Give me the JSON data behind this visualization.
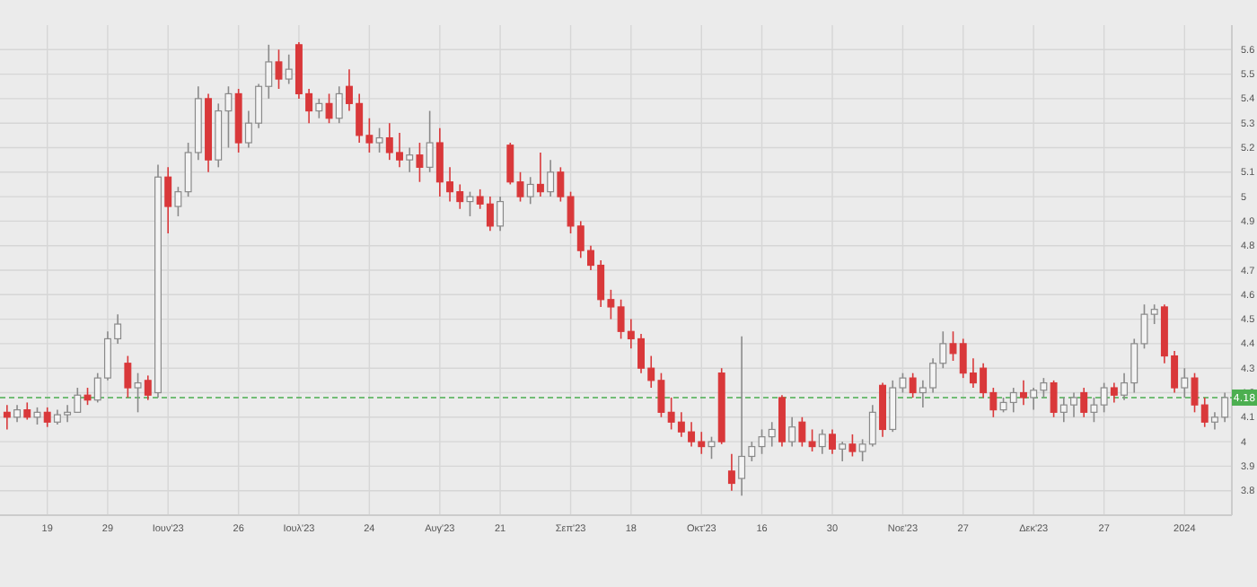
{
  "chart_data": {
    "type": "candlestick",
    "categories": [
      null,
      null,
      null,
      null,
      "19",
      null,
      null,
      null,
      null,
      null,
      "29",
      null,
      null,
      null,
      null,
      null,
      "Ιουν'23",
      null,
      null,
      null,
      null,
      null,
      null,
      "26",
      null,
      null,
      null,
      null,
      null,
      "Ιουλ'23",
      null,
      null,
      null,
      null,
      null,
      null,
      "24",
      null,
      null,
      null,
      null,
      null,
      null,
      "Αυγ'23",
      null,
      null,
      null,
      null,
      null,
      "21",
      null,
      null,
      null,
      null,
      null,
      null,
      "Σεπ'23",
      null,
      null,
      null,
      null,
      null,
      "18",
      null,
      null,
      null,
      null,
      null,
      null,
      "Οκτ'23",
      null,
      null,
      null,
      null,
      null,
      "16",
      null,
      null,
      null,
      null,
      null,
      null,
      "30",
      null,
      null,
      null,
      null,
      null,
      null,
      "Νοε'23",
      null,
      null,
      null,
      null,
      null,
      "27",
      null,
      null,
      null,
      null,
      null,
      null,
      "Δεκ'23",
      null,
      null,
      null,
      null,
      null,
      null,
      "27",
      null,
      null,
      null,
      null,
      null,
      null,
      null,
      "2024",
      null,
      null,
      null,
      null
    ],
    "ohlc": [
      [
        4.12,
        4.15,
        4.05,
        4.1
      ],
      [
        4.1,
        4.15,
        4.08,
        4.13
      ],
      [
        4.13,
        4.16,
        4.09,
        4.1
      ],
      [
        4.1,
        4.14,
        4.07,
        4.12
      ],
      [
        4.12,
        4.14,
        4.06,
        4.08
      ],
      [
        4.08,
        4.13,
        4.07,
        4.11
      ],
      [
        4.11,
        4.15,
        4.08,
        4.12
      ],
      [
        4.12,
        4.22,
        4.12,
        4.19
      ],
      [
        4.19,
        4.22,
        4.15,
        4.17
      ],
      [
        4.17,
        4.28,
        4.16,
        4.26
      ],
      [
        4.26,
        4.45,
        4.25,
        4.42
      ],
      [
        4.42,
        4.52,
        4.4,
        4.48
      ],
      [
        4.32,
        4.35,
        4.18,
        4.22
      ],
      [
        4.22,
        4.28,
        4.12,
        4.24
      ],
      [
        4.25,
        4.27,
        4.17,
        4.19
      ],
      [
        4.2,
        5.13,
        4.18,
        5.08
      ],
      [
        5.08,
        5.12,
        4.85,
        4.96
      ],
      [
        4.96,
        5.04,
        4.92,
        5.02
      ],
      [
        5.02,
        5.22,
        5.0,
        5.18
      ],
      [
        5.18,
        5.45,
        5.15,
        5.4
      ],
      [
        5.4,
        5.42,
        5.1,
        5.15
      ],
      [
        5.15,
        5.38,
        5.12,
        5.35
      ],
      [
        5.35,
        5.45,
        5.2,
        5.42
      ],
      [
        5.42,
        5.44,
        5.18,
        5.22
      ],
      [
        5.22,
        5.35,
        5.2,
        5.3
      ],
      [
        5.3,
        5.46,
        5.28,
        5.45
      ],
      [
        5.45,
        5.62,
        5.4,
        5.55
      ],
      [
        5.55,
        5.6,
        5.44,
        5.48
      ],
      [
        5.48,
        5.58,
        5.46,
        5.52
      ],
      [
        5.62,
        5.63,
        5.4,
        5.42
      ],
      [
        5.42,
        5.44,
        5.3,
        5.35
      ],
      [
        5.35,
        5.4,
        5.32,
        5.38
      ],
      [
        5.38,
        5.42,
        5.3,
        5.32
      ],
      [
        5.32,
        5.45,
        5.3,
        5.42
      ],
      [
        5.45,
        5.52,
        5.35,
        5.38
      ],
      [
        5.38,
        5.42,
        5.22,
        5.25
      ],
      [
        5.25,
        5.32,
        5.18,
        5.22
      ],
      [
        5.22,
        5.28,
        5.18,
        5.24
      ],
      [
        5.24,
        5.3,
        5.15,
        5.18
      ],
      [
        5.18,
        5.26,
        5.12,
        5.15
      ],
      [
        5.15,
        5.2,
        5.1,
        5.17
      ],
      [
        5.17,
        5.22,
        5.06,
        5.12
      ],
      [
        5.12,
        5.35,
        5.1,
        5.22
      ],
      [
        5.22,
        5.28,
        5.0,
        5.06
      ],
      [
        5.06,
        5.12,
        4.98,
        5.02
      ],
      [
        5.02,
        5.05,
        4.95,
        4.98
      ],
      [
        4.98,
        5.02,
        4.92,
        5.0
      ],
      [
        5.0,
        5.03,
        4.95,
        4.97
      ],
      [
        4.97,
        5.0,
        4.86,
        4.88
      ],
      [
        4.88,
        5.0,
        4.86,
        4.98
      ],
      [
        5.21,
        5.22,
        5.05,
        5.06
      ],
      [
        5.06,
        5.1,
        4.98,
        5.0
      ],
      [
        5.0,
        5.08,
        4.97,
        5.05
      ],
      [
        5.05,
        5.18,
        5.0,
        5.02
      ],
      [
        5.02,
        5.15,
        5.0,
        5.1
      ],
      [
        5.1,
        5.12,
        4.98,
        5.0
      ],
      [
        5.0,
        5.02,
        4.85,
        4.88
      ],
      [
        4.88,
        4.9,
        4.75,
        4.78
      ],
      [
        4.78,
        4.8,
        4.7,
        4.72
      ],
      [
        4.72,
        4.74,
        4.55,
        4.58
      ],
      [
        4.58,
        4.62,
        4.5,
        4.55
      ],
      [
        4.55,
        4.58,
        4.42,
        4.45
      ],
      [
        4.45,
        4.5,
        4.38,
        4.42
      ],
      [
        4.42,
        4.44,
        4.28,
        4.3
      ],
      [
        4.3,
        4.35,
        4.22,
        4.25
      ],
      [
        4.25,
        4.28,
        4.1,
        4.12
      ],
      [
        4.12,
        4.18,
        4.05,
        4.08
      ],
      [
        4.08,
        4.12,
        4.02,
        4.04
      ],
      [
        4.04,
        4.08,
        3.98,
        4.0
      ],
      [
        4.0,
        4.04,
        3.95,
        3.98
      ],
      [
        3.98,
        4.02,
        3.93,
        4.0
      ],
      [
        4.28,
        4.3,
        3.99,
        4.0
      ],
      [
        3.88,
        3.95,
        3.8,
        3.83
      ],
      [
        3.85,
        4.43,
        3.78,
        3.94
      ],
      [
        3.94,
        4.0,
        3.92,
        3.98
      ],
      [
        3.98,
        4.05,
        3.95,
        4.02
      ],
      [
        4.02,
        4.08,
        3.98,
        4.05
      ],
      [
        4.18,
        4.19,
        3.98,
        4.0
      ],
      [
        4.0,
        4.1,
        3.98,
        4.06
      ],
      [
        4.08,
        4.1,
        3.98,
        4.0
      ],
      [
        4.0,
        4.05,
        3.96,
        3.98
      ],
      [
        3.98,
        4.05,
        3.95,
        4.03
      ],
      [
        4.03,
        4.05,
        3.95,
        3.97
      ],
      [
        3.97,
        4.0,
        3.92,
        3.99
      ],
      [
        3.99,
        4.03,
        3.94,
        3.96
      ],
      [
        3.96,
        4.01,
        3.92,
        3.99
      ],
      [
        3.99,
        4.15,
        3.98,
        4.12
      ],
      [
        4.23,
        4.24,
        4.02,
        4.05
      ],
      [
        4.05,
        4.25,
        4.04,
        4.22
      ],
      [
        4.22,
        4.28,
        4.2,
        4.26
      ],
      [
        4.26,
        4.28,
        4.18,
        4.2
      ],
      [
        4.2,
        4.25,
        4.14,
        4.22
      ],
      [
        4.22,
        4.34,
        4.2,
        4.32
      ],
      [
        4.32,
        4.45,
        4.3,
        4.4
      ],
      [
        4.4,
        4.45,
        4.33,
        4.36
      ],
      [
        4.4,
        4.42,
        4.26,
        4.28
      ],
      [
        4.28,
        4.34,
        4.22,
        4.24
      ],
      [
        4.3,
        4.32,
        4.18,
        4.2
      ],
      [
        4.2,
        4.22,
        4.1,
        4.13
      ],
      [
        4.13,
        4.18,
        4.12,
        4.16
      ],
      [
        4.16,
        4.22,
        4.12,
        4.2
      ],
      [
        4.2,
        4.25,
        4.15,
        4.18
      ],
      [
        4.18,
        4.22,
        4.13,
        4.21
      ],
      [
        4.21,
        4.26,
        4.18,
        4.24
      ],
      [
        4.24,
        4.25,
        4.1,
        4.12
      ],
      [
        4.12,
        4.18,
        4.08,
        4.15
      ],
      [
        4.15,
        4.2,
        4.1,
        4.18
      ],
      [
        4.2,
        4.22,
        4.1,
        4.12
      ],
      [
        4.12,
        4.18,
        4.08,
        4.15
      ],
      [
        4.15,
        4.24,
        4.12,
        4.22
      ],
      [
        4.22,
        4.24,
        4.16,
        4.19
      ],
      [
        4.19,
        4.28,
        4.17,
        4.24
      ],
      [
        4.24,
        4.42,
        4.2,
        4.4
      ],
      [
        4.4,
        4.56,
        4.38,
        4.52
      ],
      [
        4.52,
        4.56,
        4.48,
        4.54
      ],
      [
        4.55,
        4.56,
        4.32,
        4.35
      ],
      [
        4.35,
        4.37,
        4.2,
        4.22
      ],
      [
        4.22,
        4.3,
        4.18,
        4.26
      ],
      [
        4.26,
        4.28,
        4.12,
        4.15
      ],
      [
        4.15,
        4.18,
        4.06,
        4.08
      ],
      [
        4.08,
        4.12,
        4.05,
        4.1
      ],
      [
        4.1,
        4.2,
        4.08,
        4.18
      ]
    ],
    "ylim": [
      3.7,
      5.7
    ],
    "yticks": [
      3.8,
      3.9,
      4,
      4.1,
      4.2,
      4.3,
      4.4,
      4.5,
      4.6,
      4.7,
      4.8,
      4.9,
      5,
      5.1,
      5.2,
      5.3,
      5.4,
      5.5,
      5.6
    ],
    "ref_lines": [
      {
        "axis": "y",
        "value": 4.18,
        "label": "4.18",
        "color": "#4caf50",
        "line_style": "dashed"
      }
    ],
    "grid": true
  }
}
